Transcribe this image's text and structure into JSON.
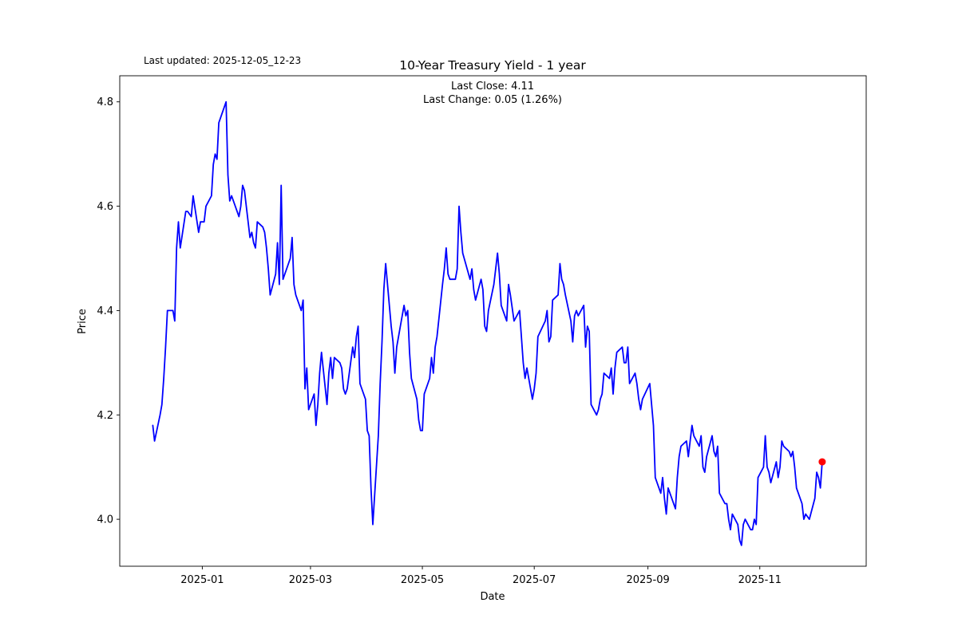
{
  "figure": {
    "title": "10-Year Treasury Yield - 1 year",
    "last_updated": "Last updated: 2025-12-05_12-23",
    "annotation_line1": "Last Close: 4.11",
    "annotation_line2": "Last Change: 0.05 (1.26%)",
    "xlabel": "Date",
    "ylabel": "Price",
    "background": "#ffffff"
  },
  "chart_data": {
    "type": "line",
    "title": "10-Year Treasury Yield - 1 year",
    "xlabel": "Date",
    "ylabel": "Price",
    "legend": "none",
    "grid": false,
    "line_color": "#0000ff",
    "last_point_color": "#ff0000",
    "last_close": 4.11,
    "last_change": "0.05 (1.26%)",
    "y_ticks": [
      {
        "v": 4.0,
        "label": "4.0"
      },
      {
        "v": 4.2,
        "label": "4.2"
      },
      {
        "v": 4.4,
        "label": "4.4"
      },
      {
        "v": 4.6,
        "label": "4.6"
      },
      {
        "v": 4.8,
        "label": "4.8"
      }
    ],
    "x_ticks": [
      {
        "date": "2025-01-01",
        "label": "2025-01"
      },
      {
        "date": "2025-03-01",
        "label": "2025-03"
      },
      {
        "date": "2025-05-01",
        "label": "2025-05"
      },
      {
        "date": "2025-07-01",
        "label": "2025-07"
      },
      {
        "date": "2025-09-01",
        "label": "2025-09"
      },
      {
        "date": "2025-11-01",
        "label": "2025-11"
      }
    ],
    "x_domain": [
      "2024-11-17",
      "2025-12-29"
    ],
    "y_domain": [
      3.91,
      4.85
    ],
    "points": [
      [
        "2024-12-05",
        4.18
      ],
      [
        "2024-12-06",
        4.15
      ],
      [
        "2024-12-09",
        4.2
      ],
      [
        "2024-12-10",
        4.22
      ],
      [
        "2024-12-11",
        4.27
      ],
      [
        "2024-12-12",
        4.33
      ],
      [
        "2024-12-13",
        4.4
      ],
      [
        "2024-12-16",
        4.4
      ],
      [
        "2024-12-17",
        4.38
      ],
      [
        "2024-12-18",
        4.52
      ],
      [
        "2024-12-19",
        4.57
      ],
      [
        "2024-12-20",
        4.52
      ],
      [
        "2024-12-23",
        4.59
      ],
      [
        "2024-12-24",
        4.59
      ],
      [
        "2024-12-26",
        4.58
      ],
      [
        "2024-12-27",
        4.62
      ],
      [
        "2024-12-30",
        4.55
      ],
      [
        "2024-12-31",
        4.57
      ],
      [
        "2025-01-02",
        4.57
      ],
      [
        "2025-01-03",
        4.6
      ],
      [
        "2025-01-06",
        4.62
      ],
      [
        "2025-01-07",
        4.68
      ],
      [
        "2025-01-08",
        4.7
      ],
      [
        "2025-01-09",
        4.69
      ],
      [
        "2025-01-10",
        4.76
      ],
      [
        "2025-01-13",
        4.79
      ],
      [
        "2025-01-14",
        4.8
      ],
      [
        "2025-01-15",
        4.66
      ],
      [
        "2025-01-16",
        4.61
      ],
      [
        "2025-01-17",
        4.62
      ],
      [
        "2025-01-21",
        4.58
      ],
      [
        "2025-01-22",
        4.6
      ],
      [
        "2025-01-23",
        4.64
      ],
      [
        "2025-01-24",
        4.63
      ],
      [
        "2025-01-27",
        4.54
      ],
      [
        "2025-01-28",
        4.55
      ],
      [
        "2025-01-29",
        4.53
      ],
      [
        "2025-01-30",
        4.52
      ],
      [
        "2025-01-31",
        4.57
      ],
      [
        "2025-02-03",
        4.56
      ],
      [
        "2025-02-04",
        4.55
      ],
      [
        "2025-02-05",
        4.52
      ],
      [
        "2025-02-06",
        4.48
      ],
      [
        "2025-02-07",
        4.43
      ],
      [
        "2025-02-10",
        4.47
      ],
      [
        "2025-02-11",
        4.53
      ],
      [
        "2025-02-12",
        4.45
      ],
      [
        "2025-02-13",
        4.64
      ],
      [
        "2025-02-14",
        4.46
      ],
      [
        "2025-02-18",
        4.5
      ],
      [
        "2025-02-19",
        4.54
      ],
      [
        "2025-02-20",
        4.45
      ],
      [
        "2025-02-21",
        4.43
      ],
      [
        "2025-02-24",
        4.4
      ],
      [
        "2025-02-25",
        4.42
      ],
      [
        "2025-02-26",
        4.25
      ],
      [
        "2025-02-27",
        4.29
      ],
      [
        "2025-02-28",
        4.21
      ],
      [
        "2025-03-03",
        4.24
      ],
      [
        "2025-03-04",
        4.18
      ],
      [
        "2025-03-05",
        4.22
      ],
      [
        "2025-03-06",
        4.28
      ],
      [
        "2025-03-07",
        4.32
      ],
      [
        "2025-03-10",
        4.22
      ],
      [
        "2025-03-11",
        4.28
      ],
      [
        "2025-03-12",
        4.31
      ],
      [
        "2025-03-13",
        4.27
      ],
      [
        "2025-03-14",
        4.31
      ],
      [
        "2025-03-17",
        4.3
      ],
      [
        "2025-03-18",
        4.29
      ],
      [
        "2025-03-19",
        4.25
      ],
      [
        "2025-03-20",
        4.24
      ],
      [
        "2025-03-21",
        4.25
      ],
      [
        "2025-03-24",
        4.33
      ],
      [
        "2025-03-25",
        4.31
      ],
      [
        "2025-03-26",
        4.35
      ],
      [
        "2025-03-27",
        4.37
      ],
      [
        "2025-03-28",
        4.26
      ],
      [
        "2025-03-31",
        4.23
      ],
      [
        "2025-04-01",
        4.17
      ],
      [
        "2025-04-02",
        4.16
      ],
      [
        "2025-04-03",
        4.06
      ],
      [
        "2025-04-04",
        3.99
      ],
      [
        "2025-04-07",
        4.16
      ],
      [
        "2025-04-08",
        4.26
      ],
      [
        "2025-04-09",
        4.34
      ],
      [
        "2025-04-10",
        4.44
      ],
      [
        "2025-04-11",
        4.49
      ],
      [
        "2025-04-14",
        4.37
      ],
      [
        "2025-04-15",
        4.34
      ],
      [
        "2025-04-16",
        4.28
      ],
      [
        "2025-04-17",
        4.33
      ],
      [
        "2025-04-21",
        4.41
      ],
      [
        "2025-04-22",
        4.39
      ],
      [
        "2025-04-23",
        4.4
      ],
      [
        "2025-04-24",
        4.32
      ],
      [
        "2025-04-25",
        4.27
      ],
      [
        "2025-04-28",
        4.23
      ],
      [
        "2025-04-29",
        4.19
      ],
      [
        "2025-04-30",
        4.17
      ],
      [
        "2025-05-01",
        4.17
      ],
      [
        "2025-05-02",
        4.24
      ],
      [
        "2025-05-05",
        4.27
      ],
      [
        "2025-05-06",
        4.31
      ],
      [
        "2025-05-07",
        4.28
      ],
      [
        "2025-05-08",
        4.33
      ],
      [
        "2025-05-09",
        4.35
      ],
      [
        "2025-05-12",
        4.45
      ],
      [
        "2025-05-13",
        4.48
      ],
      [
        "2025-05-14",
        4.52
      ],
      [
        "2025-05-15",
        4.47
      ],
      [
        "2025-05-16",
        4.46
      ],
      [
        "2025-05-19",
        4.46
      ],
      [
        "2025-05-20",
        4.48
      ],
      [
        "2025-05-21",
        4.6
      ],
      [
        "2025-05-22",
        4.55
      ],
      [
        "2025-05-23",
        4.51
      ],
      [
        "2025-05-27",
        4.46
      ],
      [
        "2025-05-28",
        4.48
      ],
      [
        "2025-05-29",
        4.44
      ],
      [
        "2025-05-30",
        4.42
      ],
      [
        "2025-06-02",
        4.46
      ],
      [
        "2025-06-03",
        4.44
      ],
      [
        "2025-06-04",
        4.37
      ],
      [
        "2025-06-05",
        4.36
      ],
      [
        "2025-06-06",
        4.4
      ],
      [
        "2025-06-09",
        4.45
      ],
      [
        "2025-06-10",
        4.48
      ],
      [
        "2025-06-11",
        4.51
      ],
      [
        "2025-06-12",
        4.47
      ],
      [
        "2025-06-13",
        4.41
      ],
      [
        "2025-06-16",
        4.38
      ],
      [
        "2025-06-17",
        4.45
      ],
      [
        "2025-06-18",
        4.43
      ],
      [
        "2025-06-20",
        4.38
      ],
      [
        "2025-06-23",
        4.4
      ],
      [
        "2025-06-24",
        4.35
      ],
      [
        "2025-06-25",
        4.3
      ],
      [
        "2025-06-26",
        4.27
      ],
      [
        "2025-06-27",
        4.29
      ],
      [
        "2025-06-30",
        4.23
      ],
      [
        "2025-07-01",
        4.25
      ],
      [
        "2025-07-02",
        4.28
      ],
      [
        "2025-07-03",
        4.35
      ],
      [
        "2025-07-07",
        4.38
      ],
      [
        "2025-07-08",
        4.4
      ],
      [
        "2025-07-09",
        4.34
      ],
      [
        "2025-07-10",
        4.35
      ],
      [
        "2025-07-11",
        4.42
      ],
      [
        "2025-07-14",
        4.43
      ],
      [
        "2025-07-15",
        4.49
      ],
      [
        "2025-07-16",
        4.46
      ],
      [
        "2025-07-17",
        4.45
      ],
      [
        "2025-07-18",
        4.43
      ],
      [
        "2025-07-21",
        4.38
      ],
      [
        "2025-07-22",
        4.34
      ],
      [
        "2025-07-23",
        4.39
      ],
      [
        "2025-07-24",
        4.4
      ],
      [
        "2025-07-25",
        4.39
      ],
      [
        "2025-07-28",
        4.41
      ],
      [
        "2025-07-29",
        4.33
      ],
      [
        "2025-07-30",
        4.37
      ],
      [
        "2025-07-31",
        4.36
      ],
      [
        "2025-08-01",
        4.22
      ],
      [
        "2025-08-04",
        4.2
      ],
      [
        "2025-08-05",
        4.21
      ],
      [
        "2025-08-06",
        4.23
      ],
      [
        "2025-08-07",
        4.24
      ],
      [
        "2025-08-08",
        4.28
      ],
      [
        "2025-08-11",
        4.27
      ],
      [
        "2025-08-12",
        4.29
      ],
      [
        "2025-08-13",
        4.24
      ],
      [
        "2025-08-14",
        4.29
      ],
      [
        "2025-08-15",
        4.32
      ],
      [
        "2025-08-18",
        4.33
      ],
      [
        "2025-08-19",
        4.3
      ],
      [
        "2025-08-20",
        4.3
      ],
      [
        "2025-08-21",
        4.33
      ],
      [
        "2025-08-22",
        4.26
      ],
      [
        "2025-08-25",
        4.28
      ],
      [
        "2025-08-26",
        4.26
      ],
      [
        "2025-08-27",
        4.23
      ],
      [
        "2025-08-28",
        4.21
      ],
      [
        "2025-08-29",
        4.23
      ],
      [
        "2025-09-02",
        4.26
      ],
      [
        "2025-09-03",
        4.22
      ],
      [
        "2025-09-04",
        4.18
      ],
      [
        "2025-09-05",
        4.08
      ],
      [
        "2025-09-08",
        4.05
      ],
      [
        "2025-09-09",
        4.08
      ],
      [
        "2025-09-10",
        4.04
      ],
      [
        "2025-09-11",
        4.01
      ],
      [
        "2025-09-12",
        4.06
      ],
      [
        "2025-09-15",
        4.03
      ],
      [
        "2025-09-16",
        4.02
      ],
      [
        "2025-09-17",
        4.08
      ],
      [
        "2025-09-18",
        4.12
      ],
      [
        "2025-09-19",
        4.14
      ],
      [
        "2025-09-22",
        4.15
      ],
      [
        "2025-09-23",
        4.12
      ],
      [
        "2025-09-24",
        4.15
      ],
      [
        "2025-09-25",
        4.18
      ],
      [
        "2025-09-26",
        4.16
      ],
      [
        "2025-09-29",
        4.14
      ],
      [
        "2025-09-30",
        4.16
      ],
      [
        "2025-10-01",
        4.1
      ],
      [
        "2025-10-02",
        4.09
      ],
      [
        "2025-10-03",
        4.12
      ],
      [
        "2025-10-06",
        4.16
      ],
      [
        "2025-10-07",
        4.13
      ],
      [
        "2025-10-08",
        4.12
      ],
      [
        "2025-10-09",
        4.14
      ],
      [
        "2025-10-10",
        4.05
      ],
      [
        "2025-10-13",
        4.03
      ],
      [
        "2025-10-14",
        4.03
      ],
      [
        "2025-10-15",
        4.0
      ],
      [
        "2025-10-16",
        3.98
      ],
      [
        "2025-10-17",
        4.01
      ],
      [
        "2025-10-20",
        3.99
      ],
      [
        "2025-10-21",
        3.96
      ],
      [
        "2025-10-22",
        3.95
      ],
      [
        "2025-10-23",
        3.99
      ],
      [
        "2025-10-24",
        4.0
      ],
      [
        "2025-10-27",
        3.98
      ],
      [
        "2025-10-28",
        3.98
      ],
      [
        "2025-10-29",
        4.0
      ],
      [
        "2025-10-30",
        3.99
      ],
      [
        "2025-10-31",
        4.08
      ],
      [
        "2025-11-03",
        4.1
      ],
      [
        "2025-11-04",
        4.16
      ],
      [
        "2025-11-05",
        4.1
      ],
      [
        "2025-11-06",
        4.09
      ],
      [
        "2025-11-07",
        4.07
      ],
      [
        "2025-11-10",
        4.11
      ],
      [
        "2025-11-11",
        4.08
      ],
      [
        "2025-11-12",
        4.1
      ],
      [
        "2025-11-13",
        4.15
      ],
      [
        "2025-11-14",
        4.14
      ],
      [
        "2025-11-17",
        4.13
      ],
      [
        "2025-11-18",
        4.12
      ],
      [
        "2025-11-19",
        4.13
      ],
      [
        "2025-11-20",
        4.1
      ],
      [
        "2025-11-21",
        4.06
      ],
      [
        "2025-11-24",
        4.03
      ],
      [
        "2025-11-25",
        4.0
      ],
      [
        "2025-11-26",
        4.01
      ],
      [
        "2025-11-28",
        4.0
      ],
      [
        "2025-12-01",
        4.04
      ],
      [
        "2025-12-02",
        4.09
      ],
      [
        "2025-12-03",
        4.08
      ],
      [
        "2025-12-04",
        4.06
      ],
      [
        "2025-12-05",
        4.11
      ]
    ]
  }
}
